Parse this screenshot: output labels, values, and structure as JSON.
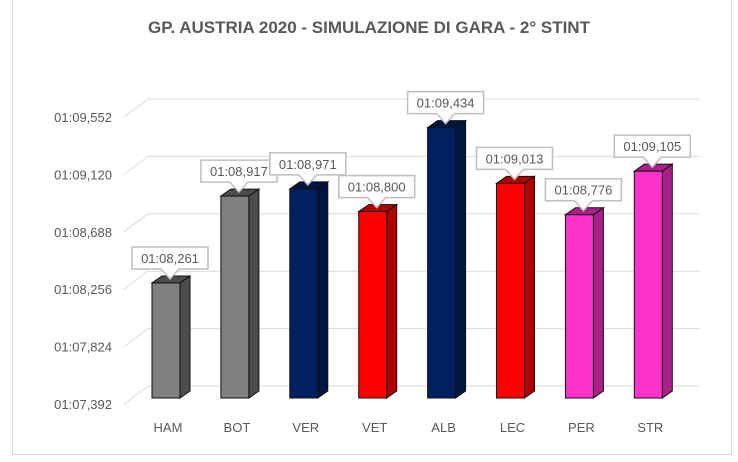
{
  "chart_data": {
    "type": "bar",
    "title": "GP. AUSTRIA 2020 - SIMULAZIONE DI GARA - 2° STINT",
    "style": "3d-column",
    "categories": [
      "HAM",
      "BOT",
      "VER",
      "VET",
      "ALB",
      "LEC",
      "PER",
      "STR"
    ],
    "values_seconds": [
      68.261,
      68.917,
      68.971,
      68.8,
      69.434,
      69.013,
      68.776,
      69.105
    ],
    "data_labels": [
      "01:08,261",
      "01:08,917",
      "01:08,971",
      "01:08,800",
      "01:09,434",
      "01:09,013",
      "01:08,776",
      "01:09,105"
    ],
    "colors": [
      "#808080",
      "#808080",
      "#002060",
      "#ff0000",
      "#002060",
      "#ff0000",
      "#ff33cc",
      "#ff33cc"
    ],
    "side_colors": [
      "#4d4d4d",
      "#4d4d4d",
      "#001540",
      "#b00000",
      "#001540",
      "#b00000",
      "#a8218a",
      "#a8218a"
    ],
    "ylim_seconds": [
      67.392,
      69.552
    ],
    "y_ticks": [
      "01:07,392",
      "01:07,824",
      "01:08,256",
      "01:08,688",
      "01:09,120",
      "01:09,552"
    ],
    "xlabel": "",
    "ylabel": "",
    "grid": true,
    "legend": "none"
  }
}
